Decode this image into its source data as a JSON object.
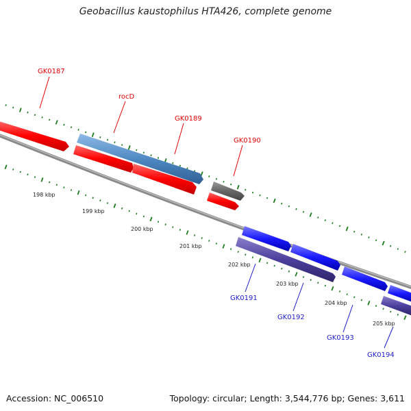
{
  "title": "Geobacillus kaustophilus HTA426, complete genome",
  "footer": {
    "accession": "Accession: NC_006510",
    "topology": "Topology: circular; Length: 3,544,776 bp; Genes: 3,611"
  },
  "colors": {
    "forward_gene": "#ff0000",
    "forward_cds": "#4f89c2",
    "reverse_gene": "#1a1aff",
    "reverse_cds": "#4a3f9c",
    "other": "#666666",
    "backbone": "#8a8a8a",
    "tick": "#1a7a1a",
    "label_forward": "#e00000",
    "label_reverse": "#1a1acc"
  },
  "scale_labels": [
    {
      "kbp": 198,
      "text": "198 kbp"
    },
    {
      "kbp": 199,
      "text": "199 kbp"
    },
    {
      "kbp": 200,
      "text": "200 kbp"
    },
    {
      "kbp": 201,
      "text": "201 kbp"
    },
    {
      "kbp": 202,
      "text": "202 kbp"
    },
    {
      "kbp": 203,
      "text": "203 kbp"
    },
    {
      "kbp": 204,
      "text": "204 kbp"
    },
    {
      "kbp": 205,
      "text": "205 kbp"
    }
  ],
  "gene_labels": [
    {
      "name": "GK0187",
      "strand": "forward"
    },
    {
      "name": "rocD",
      "strand": "forward"
    },
    {
      "name": "GK0189",
      "strand": "forward"
    },
    {
      "name": "GK0190",
      "strand": "forward"
    },
    {
      "name": "GK0191",
      "strand": "reverse"
    },
    {
      "name": "GK0192",
      "strand": "reverse"
    },
    {
      "name": "GK0193",
      "strand": "reverse"
    },
    {
      "name": "GK0194",
      "strand": "reverse"
    }
  ]
}
